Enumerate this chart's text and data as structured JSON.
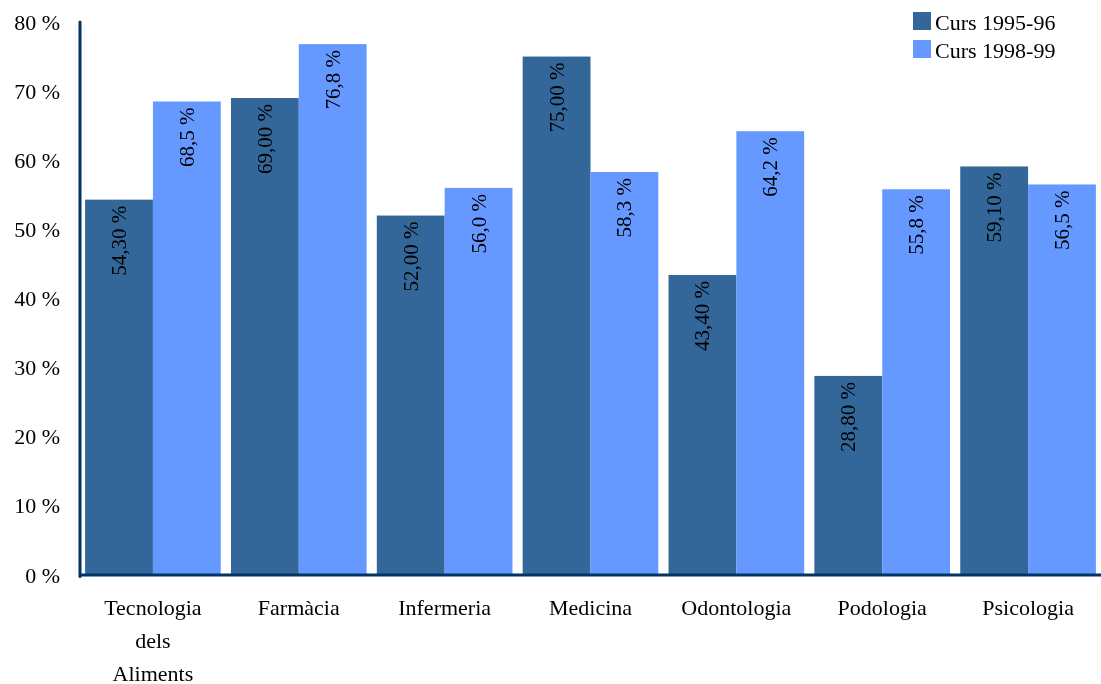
{
  "chart_data": {
    "type": "bar",
    "categories": [
      "Tecnologia dels Aliments",
      "Farmàcia",
      "Infermeria",
      "Medicina",
      "Odontologia",
      "Podologia",
      "Psicologia"
    ],
    "series": [
      {
        "name": "Curs 1995-96",
        "color": "#336699",
        "values": [
          54.3,
          69.0,
          52.0,
          75.0,
          43.4,
          28.8,
          59.1
        ],
        "value_labels": [
          "54,30 %",
          "69,00 %",
          "52,00 %",
          "75,00 %",
          "43,40 %",
          "28,80 %",
          "59,10 %"
        ]
      },
      {
        "name": "Curs 1998-99",
        "color": "#6699ff",
        "values": [
          68.5,
          76.8,
          56.0,
          58.3,
          64.2,
          55.8,
          56.5
        ],
        "value_labels": [
          "68,5 %",
          "76,8 %",
          "56,0 %",
          "58,3 %",
          "64,2 %",
          "55,8 %",
          "56,5 %"
        ]
      }
    ],
    "ylim": [
      0,
      80
    ],
    "yticks": [
      {
        "value": 0,
        "label": "0 %"
      },
      {
        "value": 10,
        "label": "10 %"
      },
      {
        "value": 20,
        "label": "20 %"
      },
      {
        "value": 30,
        "label": "30 %"
      },
      {
        "value": 40,
        "label": "40 %"
      },
      {
        "value": 50,
        "label": "50 %"
      },
      {
        "value": 60,
        "label": "60 %"
      },
      {
        "value": 70,
        "label": "70 %"
      },
      {
        "value": 80,
        "label": "80 %"
      }
    ],
    "grid": false,
    "legend": "top right"
  }
}
